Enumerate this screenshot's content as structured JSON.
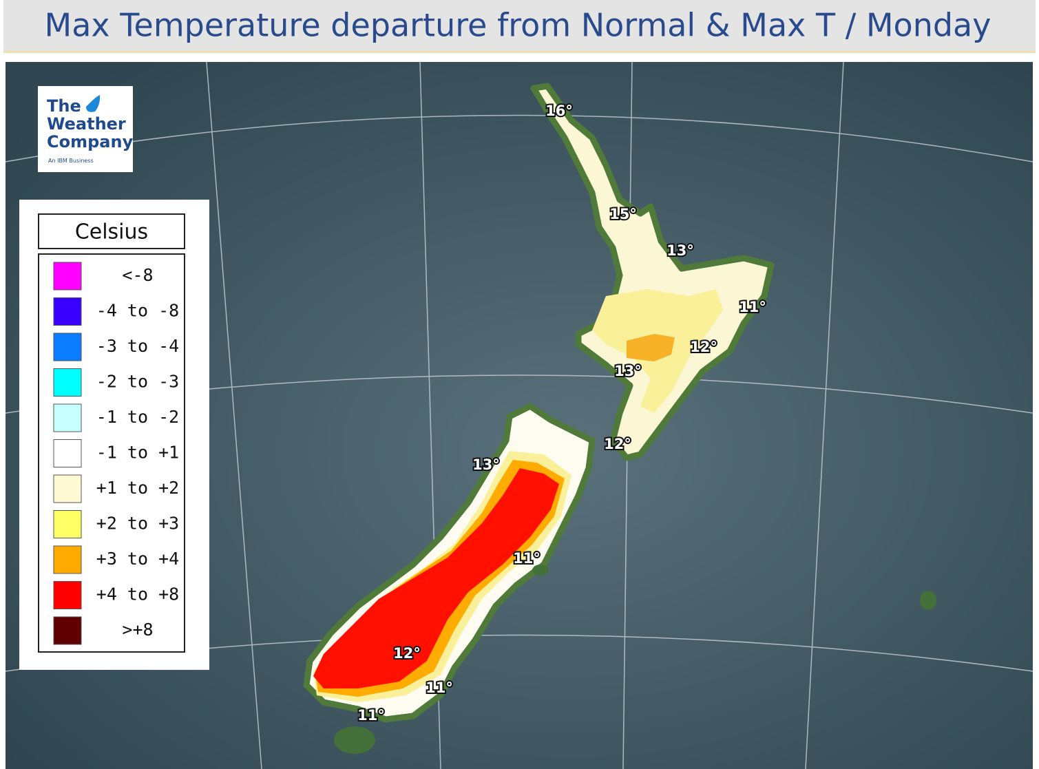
{
  "header": {
    "title": "Max Temperature departure from Normal & Max T / Monday"
  },
  "logo": {
    "lines": [
      "The",
      "Weather",
      "Company"
    ],
    "tagline": "An IBM Business"
  },
  "legend": {
    "title": "Celsius",
    "items": [
      {
        "label": "<-8",
        "color": "#ff00ff"
      },
      {
        "label": "-4 to -8",
        "color": "#3a00ff"
      },
      {
        "label": "-3 to -4",
        "color": "#0a7cff"
      },
      {
        "label": "-2 to -3",
        "color": "#00ffff"
      },
      {
        "label": "-1 to -2",
        "color": "#c8ffff"
      },
      {
        "label": "-1 to +1",
        "color": "#ffffff"
      },
      {
        "label": "+1 to +2",
        "color": "#fff9d4"
      },
      {
        "label": "+2 to +3",
        "color": "#ffff66"
      },
      {
        "label": "+3 to +4",
        "color": "#ffaa00"
      },
      {
        "label": "+4 to +8",
        "color": "#ff0000"
      },
      {
        "label": ">+8",
        "color": "#600000"
      }
    ]
  },
  "map": {
    "temperatures": [
      "16°",
      "15°",
      "13°",
      "11°",
      "12°",
      "13°",
      "12°",
      "13°",
      "11°",
      "12°",
      "11°",
      "11°"
    ]
  }
}
